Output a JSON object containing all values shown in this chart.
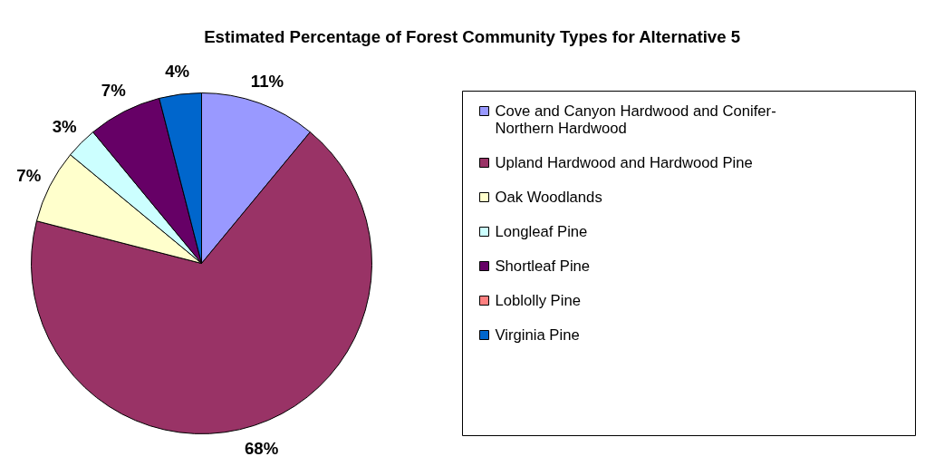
{
  "chart_data": {
    "type": "pie",
    "title": "Estimated Percentage of Forest Community Types for Alternative 5",
    "categories": [
      "Cove and Canyon Hardwood and Conifer-Northern Hardwood",
      "Upland Hardwood and Hardwood Pine",
      "Oak Woodlands",
      "Longleaf Pine",
      "Shortleaf Pine",
      "Loblolly Pine",
      "Virginia Pine"
    ],
    "values": [
      11,
      68,
      7,
      3,
      7,
      0,
      4
    ],
    "colors": [
      "#9999ff",
      "#993366",
      "#ffffcc",
      "#ccffff",
      "#660066",
      "#ff8080",
      "#0066cc"
    ],
    "value_labels": [
      "11%",
      "68%",
      "7%",
      "3%",
      "7%",
      null,
      "4%"
    ],
    "legend": "right"
  }
}
